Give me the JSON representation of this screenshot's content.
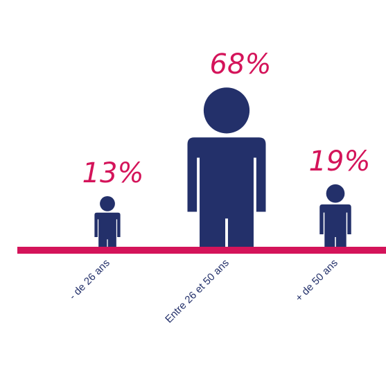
{
  "chart_data": {
    "type": "bar",
    "title": "",
    "categories": [
      "- de 26 ans",
      "Entre 26 et 50 ans",
      "+ de 50 ans"
    ],
    "values": [
      13,
      68,
      19
    ],
    "value_labels": [
      "13%",
      "68%",
      "19%"
    ],
    "unit": "%",
    "ylim": [
      0,
      100
    ],
    "mark": "person-pictogram",
    "colors": {
      "figure": "#23306a",
      "label": "#d4145a",
      "baseline": "#d4145a",
      "category_text": "#23306a"
    }
  }
}
